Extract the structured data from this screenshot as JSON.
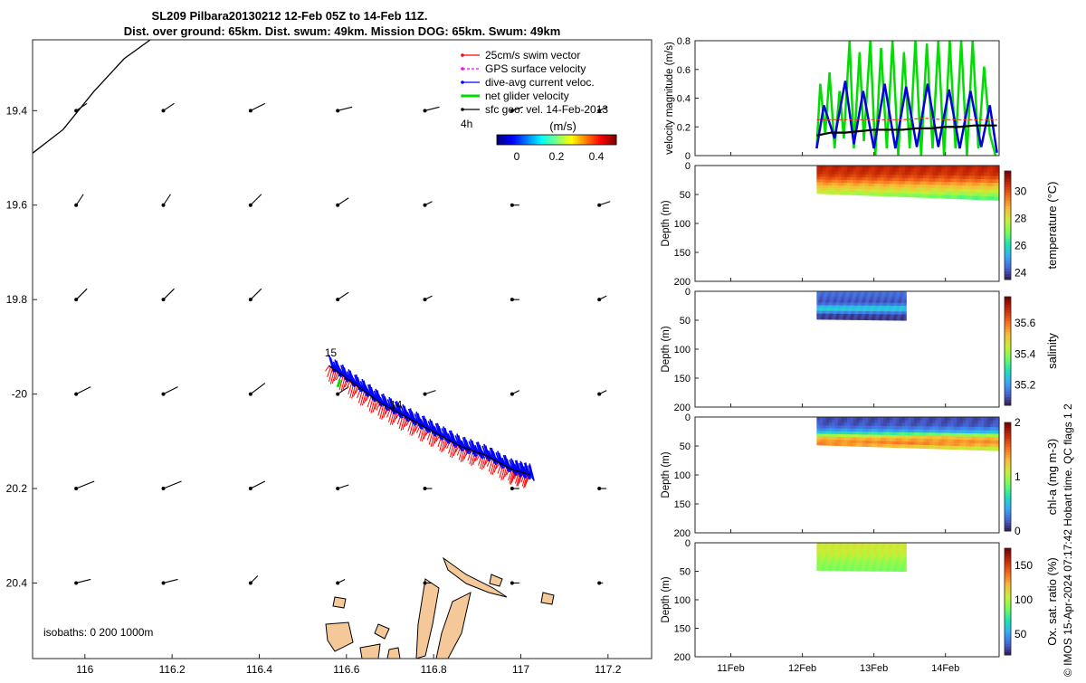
{
  "title": {
    "line1": "SL209 Pilbara20130212 12-Feb 05Z to 14-Feb 11Z.",
    "line2": "Dist. over ground: 65km. Dist. swum: 49km. Mission DOG: 65km. Swum: 49km"
  },
  "side_note": "© IMOS 15-Apr-2024 07:17:42 Hobart time. QC flags 1  2",
  "colors": {
    "swim": "#ff0000",
    "gps": "#ff00ff",
    "current": "#0000ff",
    "net": "#00dd00",
    "geo": "#000000",
    "land": "#f5c89a"
  },
  "chart_data": [
    {
      "type": "scatter",
      "id": "map",
      "xlim": [
        115.88,
        117.3
      ],
      "ylim": [
        -20.56,
        -19.25
      ],
      "yflip": true,
      "x_ticks": [
        116,
        116.2,
        116.4,
        116.6,
        116.8,
        117,
        117.2
      ],
      "x_tick_labels": [
        "116",
        "116.2",
        "116.4",
        "116.6",
        "116.8",
        "117",
        "117.2"
      ],
      "y_ticks": [
        -19.4,
        -19.6,
        -19.8,
        -20,
        -20.2,
        -20.4
      ],
      "y_tick_labels": [
        "19.4",
        "19.6",
        "19.8",
        "-20",
        "20.2",
        "20.4"
      ],
      "legend": {
        "placement": "top-right",
        "entries": [
          "25cm/s swim vector",
          "GPS surface velocity",
          "dive-avg current veloc.",
          "net glider velocity",
          "sfc geo. vel. 14-Feb-2013"
        ]
      },
      "annotations": {
        "legend_time": "4h",
        "isobaths": "isobaths: 0   200  1000m"
      },
      "colorbar": {
        "label": "(m/s)",
        "ticks": [
          0,
          0.2,
          0.4
        ],
        "tick_labels": [
          "0",
          "0.2",
          "0.4"
        ],
        "range": [
          -0.1,
          0.5
        ]
      },
      "track": {
        "x": [
          116.56,
          116.62,
          116.68,
          116.74,
          116.8,
          116.86,
          116.92,
          116.98,
          117.02
        ],
        "y": [
          -19.94,
          -19.98,
          -20.02,
          -20.05,
          -20.08,
          -20.11,
          -20.13,
          -20.16,
          -20.17
        ]
      },
      "day_labels": [
        {
          "label": "15",
          "x": 116.55,
          "y": -19.92
        },
        {
          "label": "14",
          "x": 116.7,
          "y": -20.03
        }
      ],
      "geo_vectors": {
        "lons": [
          115.98,
          116.18,
          116.38,
          116.58,
          116.78,
          116.98,
          117.18
        ],
        "lats": [
          -19.4,
          -19.6,
          -19.8,
          -20.0,
          -20.2,
          -20.4
        ],
        "u": [
          [
            0.03,
            0.03,
            0.04,
            0.04,
            0.04,
            0.03,
            0.02
          ],
          [
            0.02,
            0.02,
            0.03,
            0.03,
            0.02,
            0.02,
            0.03
          ],
          [
            0.03,
            0.03,
            0.03,
            0.03,
            0.02,
            0.02,
            0.02
          ],
          [
            0.04,
            0.04,
            0.04,
            0.03,
            0.03,
            0.02,
            0.02
          ],
          [
            0.05,
            0.05,
            0.04,
            0.03,
            0.02,
            0.02,
            0.02
          ],
          [
            0.04,
            0.04,
            0.02,
            0.02,
            0.02,
            0.02,
            0.01
          ]
        ],
        "v": [
          [
            0.02,
            0.02,
            0.02,
            0.01,
            0.01,
            0.01,
            0.01
          ],
          [
            0.03,
            0.03,
            0.03,
            0.02,
            0.01,
            0.0,
            0.01
          ],
          [
            0.03,
            0.03,
            0.03,
            0.02,
            0.01,
            0.0,
            0.01
          ],
          [
            0.02,
            0.02,
            0.03,
            0.02,
            0.01,
            0.01,
            0.01
          ],
          [
            0.02,
            0.02,
            0.02,
            0.01,
            0.0,
            0.0,
            0.0
          ],
          [
            0.01,
            0.01,
            0.02,
            0.01,
            0.0,
            0.0,
            0.0
          ]
        ]
      },
      "coast": {
        "x": [
          115.88,
          115.95,
          116.02,
          116.09,
          116.15
        ],
        "y": [
          -19.49,
          -19.44,
          -19.36,
          -19.29,
          -19.25
        ]
      }
    },
    {
      "type": "line",
      "id": "velocity",
      "ylabel": "velocity magnitude (m/s)",
      "ylim": [
        0,
        0.8
      ],
      "xlim": [
        10.5,
        14.75
      ],
      "y_ticks": [
        0,
        0.2,
        0.4,
        0.6,
        0.8
      ],
      "y_tick_labels": [
        "0",
        "0.2",
        "0.4",
        "0.6",
        "0.8"
      ],
      "series": [
        {
          "color": "#00dd00",
          "x": [
            12.2,
            12.25,
            12.32,
            12.38,
            12.45,
            12.52,
            12.58,
            12.66,
            12.72,
            12.8,
            12.86,
            12.95,
            13.02,
            13.1,
            13.18,
            13.26,
            13.34,
            13.42,
            13.5,
            13.58,
            13.66,
            13.74,
            13.82,
            13.9,
            13.98,
            14.06,
            14.14,
            14.22,
            14.3,
            14.38,
            14.46,
            14.54,
            14.62,
            14.7
          ],
          "y": [
            0.05,
            0.5,
            0.15,
            0.58,
            0.05,
            0.45,
            0.12,
            0.8,
            0.05,
            0.72,
            0.1,
            0.8,
            0.0,
            0.75,
            0.05,
            0.8,
            0.0,
            0.72,
            0.05,
            0.8,
            0.0,
            0.78,
            0.05,
            0.8,
            0.0,
            0.8,
            0.05,
            0.8,
            0.0,
            0.8,
            0.05,
            0.62,
            0.15,
            0.0
          ]
        },
        {
          "color": "#0000dd",
          "x": [
            12.2,
            12.3,
            12.45,
            12.6,
            12.72,
            12.85,
            13.0,
            13.15,
            13.3,
            13.45,
            13.6,
            13.75,
            13.9,
            14.05,
            14.2,
            14.35,
            14.5,
            14.62,
            14.72
          ],
          "y": [
            0.05,
            0.35,
            0.12,
            0.52,
            0.08,
            0.45,
            0.05,
            0.5,
            0.05,
            0.48,
            0.06,
            0.5,
            0.06,
            0.46,
            0.05,
            0.45,
            0.06,
            0.35,
            0.02
          ]
        },
        {
          "color": "#ff2a2a",
          "x": [
            12.2,
            12.5,
            12.8,
            13.1,
            13.4,
            13.7,
            14.0,
            14.3,
            14.6,
            14.72
          ],
          "y": [
            0.25,
            0.25,
            0.25,
            0.25,
            0.25,
            0.26,
            0.25,
            0.25,
            0.25,
            0.25
          ]
        },
        {
          "color": "#000000",
          "x": [
            12.2,
            12.4,
            12.6,
            12.8,
            13.0,
            13.2,
            13.4,
            13.6,
            13.8,
            14.0,
            14.2,
            14.4,
            14.6,
            14.72
          ],
          "y": [
            0.14,
            0.16,
            0.16,
            0.17,
            0.18,
            0.18,
            0.18,
            0.19,
            0.19,
            0.2,
            0.2,
            0.21,
            0.21,
            0.21
          ]
        }
      ]
    },
    {
      "type": "heatmap",
      "id": "temperature",
      "ylabel": "Depth (m)",
      "clabel": "temperature (°C)",
      "ylim": [
        0,
        200
      ],
      "y_ticks": [
        0,
        50,
        100,
        150,
        200
      ],
      "xlim": [
        10.5,
        14.75
      ],
      "x_start": 12.2,
      "x_end": 14.75,
      "depth_top": 0,
      "depth_bottom_start": 48,
      "depth_bottom_end": 60,
      "clim": [
        23.5,
        31.5
      ],
      "c_ticks": [
        24,
        26,
        28,
        30
      ],
      "c_tick_labels": [
        "24",
        "26",
        "28",
        "30"
      ],
      "profile": [
        {
          "d": 0,
          "v": 30.8
        },
        {
          "d": 15,
          "v": 30.5
        },
        {
          "d": 25,
          "v": 29.8
        },
        {
          "d": 35,
          "v": 28.8
        },
        {
          "d": 45,
          "v": 28.0
        },
        {
          "d": 55,
          "v": 26.8
        }
      ]
    },
    {
      "type": "heatmap",
      "id": "salinity",
      "ylabel": "Depth (m)",
      "clabel": "salinity",
      "ylim": [
        0,
        200
      ],
      "y_ticks": [
        0,
        50,
        100,
        150,
        200
      ],
      "xlim": [
        10.5,
        14.75
      ],
      "x_start": 12.2,
      "x_end": 13.45,
      "depth_top": 0,
      "depth_bottom_start": 48,
      "depth_bottom_end": 50,
      "clim": [
        35.07,
        35.77
      ],
      "c_ticks": [
        35.2,
        35.4,
        35.6
      ],
      "c_tick_labels": [
        "35.2",
        "35.4",
        "35.6"
      ],
      "profile": [
        {
          "d": 0,
          "v": 35.17
        },
        {
          "d": 10,
          "v": 35.15
        },
        {
          "d": 20,
          "v": 35.13
        },
        {
          "d": 30,
          "v": 35.3
        },
        {
          "d": 40,
          "v": 35.12
        },
        {
          "d": 50,
          "v": 35.11
        }
      ]
    },
    {
      "type": "heatmap",
      "id": "chla",
      "ylabel": "Depth (m)",
      "clabel": "chl-a (mg m-3)",
      "ylim": [
        0,
        200
      ],
      "y_ticks": [
        0,
        50,
        100,
        150,
        200
      ],
      "xlim": [
        10.5,
        14.75
      ],
      "x_start": 12.2,
      "x_end": 14.75,
      "depth_top": 0,
      "depth_bottom_start": 48,
      "depth_bottom_end": 58,
      "clim": [
        0,
        2
      ],
      "c_ticks": [
        0,
        1,
        2
      ],
      "c_tick_labels": [
        "0",
        "1",
        "2"
      ],
      "profile": [
        {
          "d": 0,
          "v": 0.15
        },
        {
          "d": 15,
          "v": 0.2
        },
        {
          "d": 25,
          "v": 0.45
        },
        {
          "d": 35,
          "v": 1.3
        },
        {
          "d": 45,
          "v": 1.5
        },
        {
          "d": 55,
          "v": 1.1
        }
      ]
    },
    {
      "type": "heatmap",
      "id": "oxygen",
      "ylabel": "Depth (m)",
      "clabel": "Ox. sat. ratio (%)",
      "ylim": [
        0,
        200
      ],
      "y_ticks": [
        0,
        50,
        100,
        150,
        200
      ],
      "xlim": [
        10.5,
        14.75
      ],
      "x_start": 12.2,
      "x_end": 13.45,
      "depth_top": 0,
      "depth_bottom_start": 48,
      "depth_bottom_end": 50,
      "clim": [
        20,
        175
      ],
      "c_ticks": [
        50,
        100,
        150
      ],
      "c_tick_labels": [
        "50",
        "100",
        "150"
      ],
      "profile": [
        {
          "d": 0,
          "v": 110
        },
        {
          "d": 20,
          "v": 105
        },
        {
          "d": 35,
          "v": 95
        },
        {
          "d": 50,
          "v": 90
        }
      ]
    }
  ],
  "time_axis": {
    "ticks": [
      11,
      12,
      13,
      14
    ],
    "tick_labels": [
      "11Feb",
      "12Feb",
      "13Feb",
      "14Feb"
    ]
  }
}
